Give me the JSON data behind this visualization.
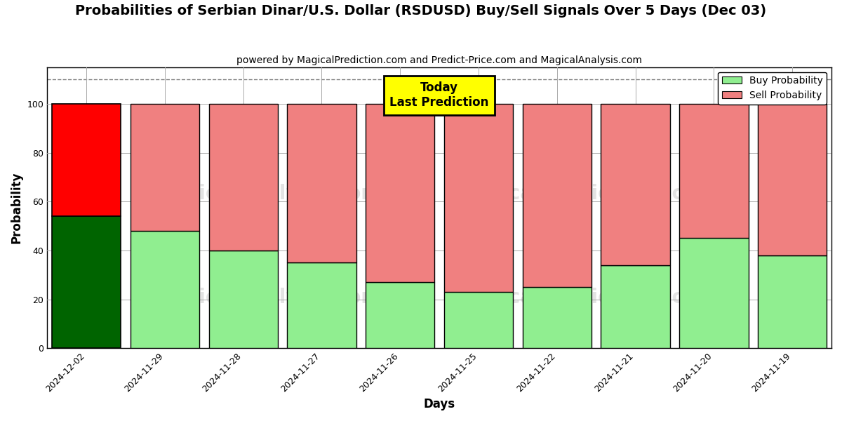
{
  "title": "Probabilities of Serbian Dinar/U.S. Dollar (RSDUSD) Buy/Sell Signals Over 5 Days (Dec 03)",
  "subtitle": "powered by MagicalPrediction.com and Predict-Price.com and MagicalAnalysis.com",
  "xlabel": "Days",
  "ylabel": "Probability",
  "categories": [
    "2024-12-02",
    "2024-11-29",
    "2024-11-28",
    "2024-11-27",
    "2024-11-26",
    "2024-11-25",
    "2024-11-22",
    "2024-11-21",
    "2024-11-20",
    "2024-11-19"
  ],
  "buy_values": [
    54,
    48,
    40,
    35,
    27,
    23,
    25,
    34,
    45,
    38
  ],
  "sell_values": [
    46,
    52,
    60,
    65,
    73,
    77,
    75,
    66,
    55,
    62
  ],
  "today_bar_buy_color": "#006400",
  "today_bar_sell_color": "#FF0000",
  "regular_bar_buy_color": "#90EE90",
  "regular_bar_sell_color": "#F08080",
  "today_annotation_text": "Today\nLast Prediction",
  "today_annotation_bg": "#FFFF00",
  "today_annotation_border": "#000000",
  "dashed_line_y": 110,
  "ylim": [
    0,
    115
  ],
  "yticks": [
    0,
    20,
    40,
    60,
    80,
    100
  ],
  "legend_buy_label": "Buy Probability",
  "legend_sell_label": "Sell Probability",
  "background_color": "#ffffff",
  "grid_color": "#aaaaaa",
  "bar_width": 0.88,
  "title_fontsize": 14,
  "subtitle_fontsize": 10,
  "axis_label_fontsize": 12,
  "tick_fontsize": 9,
  "legend_fontsize": 10,
  "annotation_fontsize": 12
}
